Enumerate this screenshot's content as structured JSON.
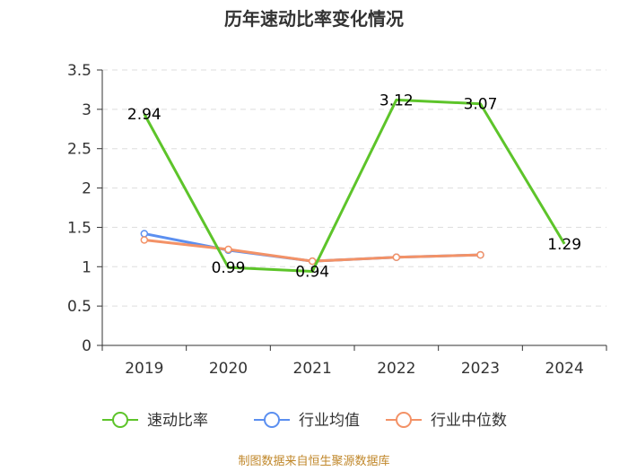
{
  "chart_data": {
    "type": "line",
    "title": "历年速动比率变化情况",
    "xlabel": "",
    "ylabel": "",
    "categories": [
      "2019",
      "2020",
      "2021",
      "2022",
      "2023",
      "2024"
    ],
    "ylim": [
      0,
      3.5
    ],
    "yticks": [
      "0",
      "0.5",
      "1",
      "1.5",
      "2",
      "2.5",
      "3",
      "3.5"
    ],
    "grid": true,
    "legend_position": "bottom",
    "series": [
      {
        "name": "速动比率",
        "color": "#5dc42a",
        "values": [
          2.94,
          0.99,
          0.94,
          3.12,
          3.07,
          1.29
        ],
        "labels": [
          "2.94",
          "0.99",
          "0.94",
          "3.12",
          "3.07",
          "1.29"
        ],
        "show_labels": true,
        "show_markers": false
      },
      {
        "name": "行业均值",
        "color": "#5b8ff0",
        "values": [
          1.42,
          1.21,
          1.07,
          1.12,
          1.15,
          null
        ],
        "show_labels": false,
        "show_markers": true
      },
      {
        "name": "行业中位数",
        "color": "#f39267",
        "values": [
          1.34,
          1.22,
          1.07,
          1.12,
          1.15,
          null
        ],
        "show_labels": false,
        "show_markers": true
      }
    ]
  },
  "source_note": "制图数据来自恒生聚源数据库"
}
